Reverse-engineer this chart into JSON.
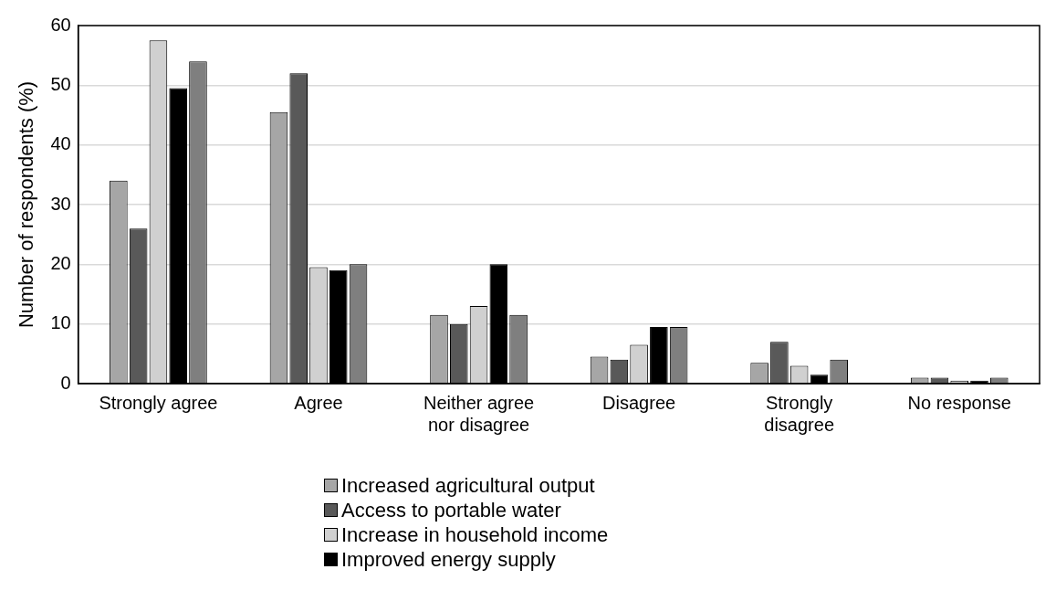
{
  "chart_data": {
    "type": "bar",
    "ylabel": "Number of respondents (%)",
    "categories": [
      "Strongly agree",
      "Agree",
      "Neither agree nor disagree",
      "Disagree",
      "Strongly disagree",
      "No response"
    ],
    "series": [
      {
        "name": "Increased agricultural output",
        "color": "#a6a6a6",
        "values": [
          34,
          45.5,
          11.5,
          4.5,
          3.5,
          1
        ]
      },
      {
        "name": "Access to portable water",
        "color": "#595959",
        "values": [
          26,
          52,
          10,
          4,
          7,
          1
        ]
      },
      {
        "name": "Increase in household income",
        "color": "#d0d0d0",
        "values": [
          57.5,
          19.5,
          13,
          6.5,
          3,
          0.5
        ]
      },
      {
        "name": "Improved energy supply",
        "color": "#000000",
        "values": [
          49.5,
          19,
          20,
          9.5,
          1.5,
          0.5
        ]
      },
      {
        "color": "#7f7f7f",
        "values": [
          54,
          20,
          11.5,
          9.5,
          4,
          1
        ]
      }
    ],
    "ylim": [
      0,
      60
    ],
    "yticks": [
      0,
      10,
      20,
      30,
      40,
      50,
      60
    ],
    "grid": "y",
    "legend": "bottom"
  }
}
